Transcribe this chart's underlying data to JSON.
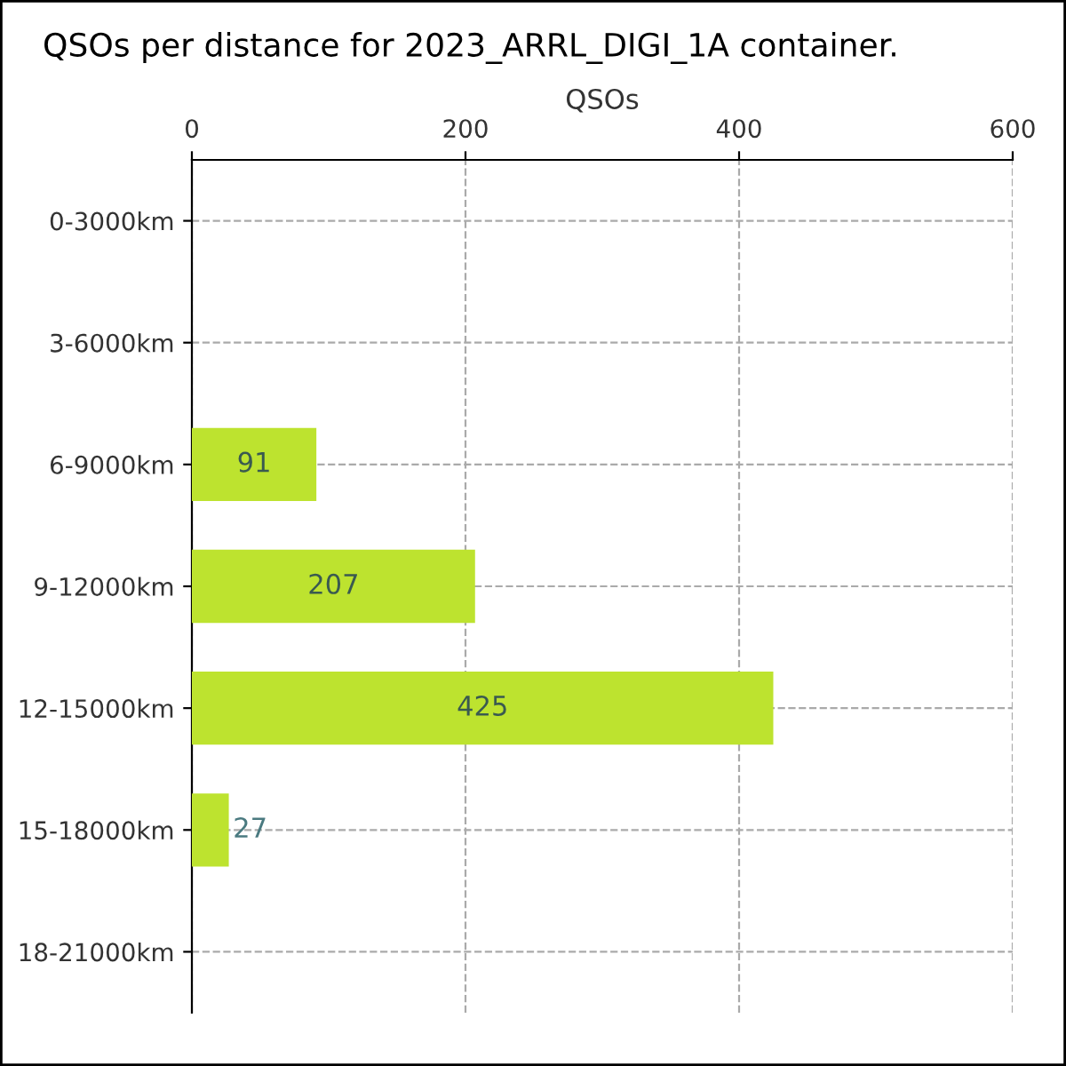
{
  "chart_data": {
    "type": "bar",
    "orientation": "horizontal",
    "title": "QSOs per distance for 2023_ARRL_DIGI_1A container.",
    "xlabel": "QSOs",
    "categories": [
      "0-3000km",
      "3-6000km",
      "6-9000km",
      "9-12000km",
      "12-15000km",
      "15-18000km",
      "18-21000km"
    ],
    "values": [
      0,
      0,
      91,
      207,
      425,
      27,
      0
    ],
    "value_labels": [
      null,
      null,
      "91",
      "207",
      "425",
      "27",
      null
    ],
    "color": "#bde32f",
    "xlim": [
      0,
      600
    ],
    "xticks": [
      0,
      200,
      400,
      600
    ],
    "grid": true
  }
}
